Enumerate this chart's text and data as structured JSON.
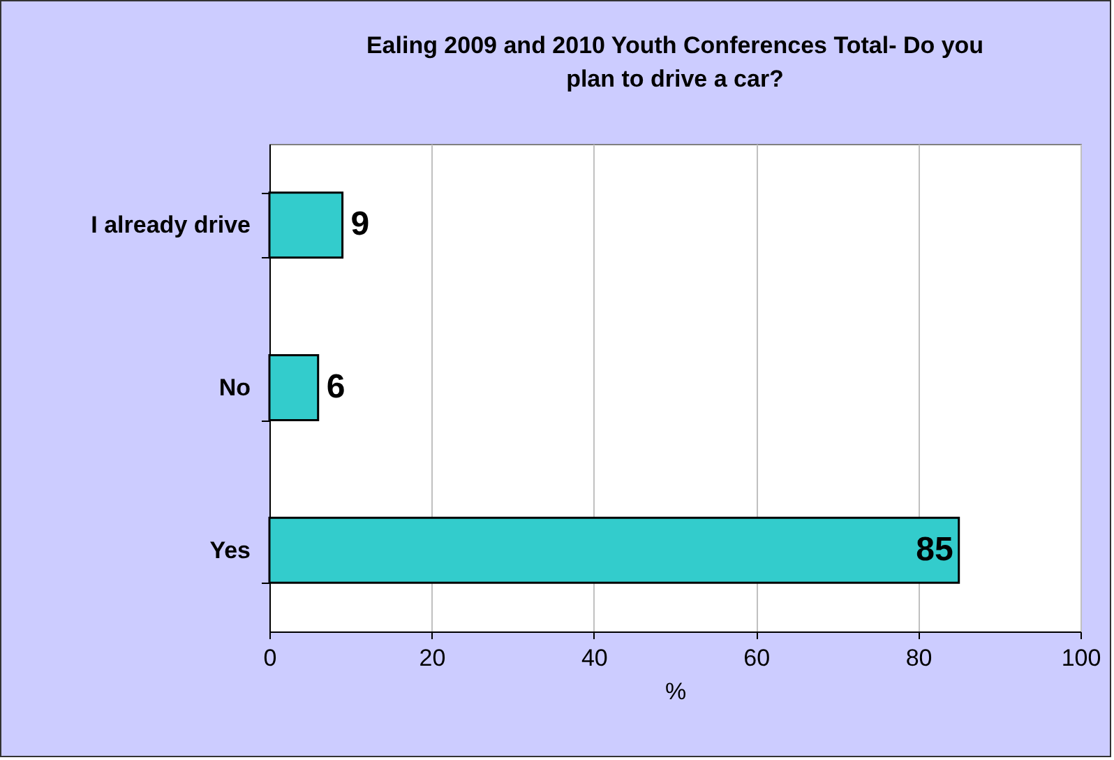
{
  "chart_data": {
    "type": "bar",
    "orientation": "horizontal",
    "title": "Ealing 2009 and 2010 Youth Conferences Total- Do you plan to drive a car?",
    "categories": [
      "I already drive",
      "No",
      "Yes"
    ],
    "values": [
      9,
      6,
      85
    ],
    "color": "#33cccc",
    "xlabel": "%",
    "xlim": [
      0,
      100
    ],
    "xticks": [
      0,
      20,
      40,
      60,
      80,
      100
    ],
    "grid": "x",
    "data_labels": true
  }
}
